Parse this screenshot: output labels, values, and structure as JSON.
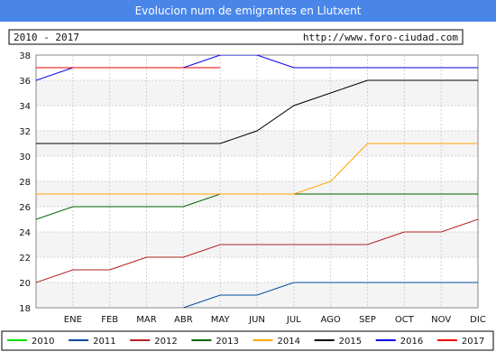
{
  "chart_data": {
    "type": "line",
    "title": "Evolucion num de emigrantes en Llutxent",
    "period": "2010 - 2017",
    "source_url": "http://www.foro-ciudad.com",
    "xlabel": "",
    "ylabel": "",
    "x_labels": [
      "ENE",
      "FEB",
      "MAR",
      "ABR",
      "MAY",
      "JUN",
      "JUL",
      "AGO",
      "SEP",
      "OCT",
      "NOV",
      "DIC"
    ],
    "ylim": [
      18,
      38
    ],
    "yticks": [
      18,
      20,
      22,
      24,
      26,
      28,
      30,
      32,
      34,
      36,
      38
    ],
    "grid": true,
    "legend_position": "bottom",
    "series": [
      {
        "name": "2010",
        "color": "#00dd00",
        "values": []
      },
      {
        "name": "2011",
        "color": "#004a9f",
        "values": [
          17,
          17,
          17,
          17,
          18,
          19,
          19,
          20,
          20,
          20,
          20,
          20,
          20
        ]
      },
      {
        "name": "2012",
        "color": "#b22222",
        "values": [
          20,
          21,
          21,
          22,
          22,
          23,
          23,
          23,
          23,
          23,
          24,
          24,
          25
        ]
      },
      {
        "name": "2013",
        "color": "#006400",
        "values": [
          25,
          26,
          26,
          26,
          26,
          27,
          27,
          27,
          27,
          27,
          27,
          27,
          27
        ]
      },
      {
        "name": "2014",
        "color": "#ffa500",
        "values": [
          27,
          27,
          27,
          27,
          27,
          27,
          27,
          27,
          28,
          31,
          31,
          31,
          31
        ]
      },
      {
        "name": "2015",
        "color": "#000000",
        "values": [
          31,
          31,
          31,
          31,
          31,
          31,
          32,
          34,
          35,
          36,
          36,
          36,
          36
        ]
      },
      {
        "name": "2016",
        "color": "#0000ee",
        "values": [
          36,
          37,
          37,
          37,
          37,
          38,
          38,
          37,
          37,
          37,
          37,
          37,
          37
        ]
      },
      {
        "name": "2017",
        "color": "#ee0000",
        "values": [
          37,
          37,
          37,
          37,
          37,
          37
        ]
      }
    ]
  }
}
